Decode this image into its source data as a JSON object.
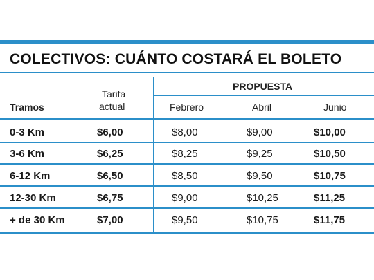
{
  "title": "COLECTIVOS: CUÁNTO COSTARÁ EL BOLETO",
  "headers": {
    "tramos": "Tramos",
    "tarifa_line1": "Tarifa",
    "tarifa_line2": "actual",
    "propuesta": "PROPUESTA",
    "febrero": "Febrero",
    "abril": "Abril",
    "junio": "Junio"
  },
  "rows": [
    {
      "tramo": "0-3 Km",
      "actual": "$6,00",
      "febrero": "$8,00",
      "abril": "$9,00",
      "junio": "$10,00"
    },
    {
      "tramo": "3-6 Km",
      "actual": "$6,25",
      "febrero": "$8,25",
      "abril": "$9,25",
      "junio": "$10,50"
    },
    {
      "tramo": "6-12 Km",
      "actual": "$6,50",
      "febrero": "$8,50",
      "abril": "$9,50",
      "junio": "$10,75"
    },
    {
      "tramo": "12-30 Km",
      "actual": "$6,75",
      "febrero": "$9,00",
      "abril": "$10,25",
      "junio": "$11,25"
    },
    {
      "tramo": "+ de 30 Km",
      "actual": "$7,00",
      "febrero": "$9,50",
      "abril": "$10,75",
      "junio": "$11,75"
    }
  ],
  "colors": {
    "accent": "#2b8fc9"
  }
}
